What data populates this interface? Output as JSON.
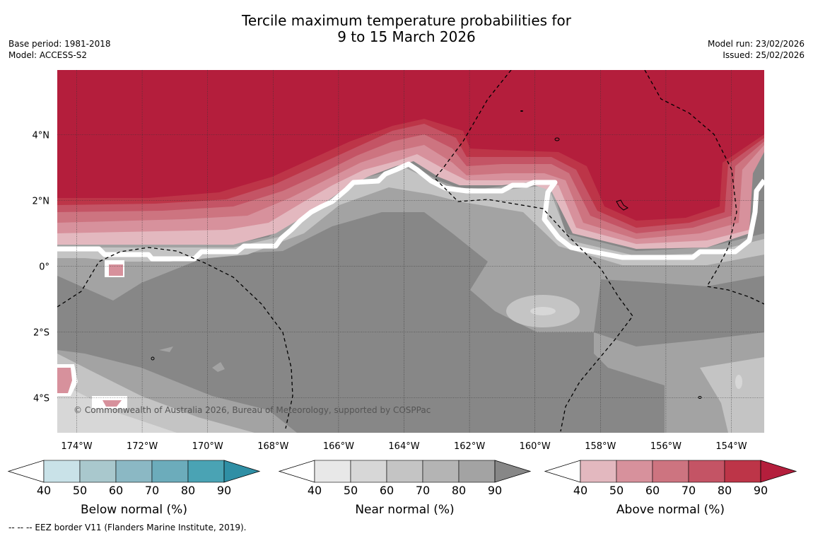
{
  "title": {
    "line1": "Tercile maximum temperature probabilities for",
    "line2": "9 to 15 March 2026"
  },
  "meta_left": {
    "base_period": "Base period: 1981-2018",
    "model": "Model: ACCESS-S2"
  },
  "meta_right": {
    "model_run": "Model run: 23/02/2026",
    "issued": "Issued: 25/02/2026"
  },
  "map": {
    "lon_labels": [
      "174°W",
      "172°W",
      "170°W",
      "168°W",
      "166°W",
      "164°W",
      "162°W",
      "160°W",
      "158°W",
      "156°W",
      "154°W"
    ],
    "lat_labels": [
      "4°N",
      "2°N",
      "0°",
      "2°S",
      "4°S"
    ],
    "copyright": "© Commonwealth of Australia 2026, Bureau of Meteorology, supported by COSPPac"
  },
  "colorbars": [
    {
      "title": "Below normal (%)",
      "ticks": [
        "40",
        "50",
        "60",
        "70",
        "80",
        "90"
      ],
      "colors": [
        "#c9e2e8",
        "#a9c8cd",
        "#8bb8c4",
        "#6cacbb",
        "#4aa3b4",
        "#2f8fa5"
      ]
    },
    {
      "title": "Near normal (%)",
      "ticks": [
        "40",
        "50",
        "60",
        "70",
        "80",
        "90"
      ],
      "colors": [
        "#e8e8e8",
        "#d7d7d7",
        "#c4c4c4",
        "#b4b4b4",
        "#a3a3a3",
        "#878787"
      ]
    },
    {
      "title": "Above normal (%)",
      "ticks": [
        "40",
        "50",
        "60",
        "70",
        "80",
        "90"
      ],
      "colors": [
        "#e3b8bf",
        "#d7919c",
        "#cd7480",
        "#c45465",
        "#bd3548",
        "#b41e3c"
      ]
    }
  ],
  "footnote": "--  --  -- EEZ border V11 (Flanders Marine Institute, 2019).",
  "palette": {
    "red_full": "#b41e3c",
    "grey_dark": "#878787",
    "grey_mid": "#a3a3a3",
    "grey_light": "#c4c4c4",
    "grey_lighter": "#d7d7d7"
  }
}
